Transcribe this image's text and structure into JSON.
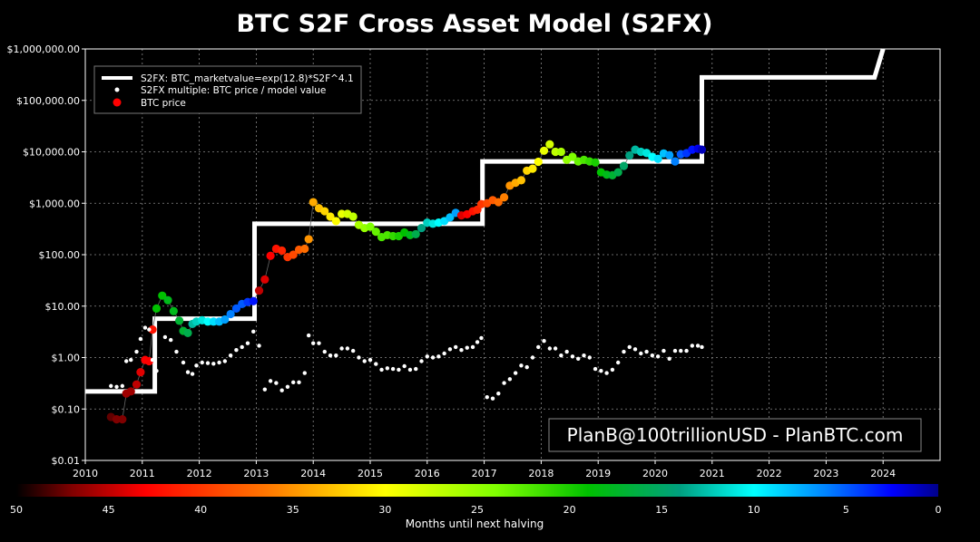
{
  "chart_data": {
    "type": "scatter",
    "title": "BTC S2F Cross Asset Model (S2FX)",
    "xlabel": "",
    "ylabel": "",
    "yscale": "log",
    "ylim": [
      0.01,
      1000000
    ],
    "xlim": [
      2010,
      2025
    ],
    "grid": true,
    "y_ticks": [
      {
        "value": 0.01,
        "label": "$0.01"
      },
      {
        "value": 0.1,
        "label": "$0.10"
      },
      {
        "value": 1,
        "label": "$1.00"
      },
      {
        "value": 10,
        "label": "$10.00"
      },
      {
        "value": 100,
        "label": "$100.00"
      },
      {
        "value": 1000,
        "label": "$1,000.00"
      },
      {
        "value": 10000,
        "label": "$10,000.00"
      },
      {
        "value": 100000,
        "label": "$100,000.00"
      },
      {
        "value": 1000000,
        "label": "$1,000,000.00"
      }
    ],
    "x_ticks": [
      {
        "value": 2010,
        "label": "2010"
      },
      {
        "value": 2011,
        "label": "2011"
      },
      {
        "value": 2012,
        "label": "2012"
      },
      {
        "value": 2013,
        "label": "2013"
      },
      {
        "value": 2014,
        "label": "2014"
      },
      {
        "value": 2015,
        "label": "2015"
      },
      {
        "value": 2016,
        "label": "2016"
      },
      {
        "value": 2017,
        "label": "2017"
      },
      {
        "value": 2018,
        "label": "2018"
      },
      {
        "value": 2019,
        "label": "2019"
      },
      {
        "value": 2020,
        "label": "2020"
      },
      {
        "value": 2021,
        "label": "2021"
      },
      {
        "value": 2022,
        "label": "2022"
      },
      {
        "value": 2023,
        "label": "2023"
      },
      {
        "value": 2024,
        "label": "2024"
      }
    ],
    "legend": {
      "placement": "top-left",
      "entries": [
        {
          "label": "S2FX: BTC_marketvalue=exp(12.8)*S2F^4.1",
          "marker": "line",
          "color": "#ffffff"
        },
        {
          "label": "S2FX multiple: BTC price / model value",
          "marker": "small-dot",
          "color": "#ffffff"
        },
        {
          "label": "BTC price",
          "marker": "dot",
          "color": "#ff0000"
        }
      ]
    },
    "watermark": "PlanB@100trillionUSD  -  PlanBTC.com",
    "colorbar": {
      "label": "Months until next halving",
      "min": 0,
      "max": 50,
      "ticks": [
        {
          "value": 50,
          "label": "50"
        },
        {
          "value": 45,
          "label": "45"
        },
        {
          "value": 40,
          "label": "40"
        },
        {
          "value": 35,
          "label": "35"
        },
        {
          "value": 30,
          "label": "30"
        },
        {
          "value": 25,
          "label": "25"
        },
        {
          "value": 20,
          "label": "20"
        },
        {
          "value": 15,
          "label": "15"
        },
        {
          "value": 10,
          "label": "10"
        },
        {
          "value": 5,
          "label": "5"
        },
        {
          "value": 0,
          "label": "0"
        }
      ]
    },
    "series": [
      {
        "name": "S2FX model (step)",
        "type": "step-line",
        "points": [
          [
            2010.0,
            0.22
          ],
          [
            2011.22,
            0.22
          ],
          [
            2011.22,
            5.7
          ],
          [
            2012.97,
            5.7
          ],
          [
            2012.97,
            400
          ],
          [
            2016.97,
            400
          ],
          [
            2016.97,
            6500
          ],
          [
            2020.82,
            6500
          ],
          [
            2020.82,
            280000
          ],
          [
            2023.85,
            280000
          ],
          [
            2024.0,
            1000000
          ]
        ]
      },
      {
        "name": "S2FX multiple",
        "type": "scatter-small",
        "points": [
          [
            2010.45,
            0.28
          ],
          [
            2010.55,
            0.27
          ],
          [
            2010.65,
            0.28
          ],
          [
            2010.72,
            0.85
          ],
          [
            2010.8,
            0.9
          ],
          [
            2010.9,
            1.3
          ],
          [
            2010.97,
            2.3
          ],
          [
            2011.05,
            3.8
          ],
          [
            2011.12,
            3.5
          ],
          [
            2011.18,
            0.9
          ],
          [
            2011.25,
            0.55
          ],
          [
            2011.4,
            2.5
          ],
          [
            2011.5,
            2.2
          ],
          [
            2011.6,
            1.3
          ],
          [
            2011.72,
            0.8
          ],
          [
            2011.8,
            0.52
          ],
          [
            2011.88,
            0.48
          ],
          [
            2011.95,
            0.7
          ],
          [
            2012.05,
            0.8
          ],
          [
            2012.15,
            0.78
          ],
          [
            2012.25,
            0.76
          ],
          [
            2012.35,
            0.8
          ],
          [
            2012.45,
            0.85
          ],
          [
            2012.55,
            1.1
          ],
          [
            2012.65,
            1.4
          ],
          [
            2012.75,
            1.6
          ],
          [
            2012.85,
            1.9
          ],
          [
            2012.95,
            3.2
          ],
          [
            2013.05,
            1.7
          ],
          [
            2013.15,
            0.24
          ],
          [
            2013.25,
            0.35
          ],
          [
            2013.35,
            0.32
          ],
          [
            2013.45,
            0.23
          ],
          [
            2013.55,
            0.27
          ],
          [
            2013.65,
            0.33
          ],
          [
            2013.75,
            0.33
          ],
          [
            2013.85,
            0.5
          ],
          [
            2013.92,
            2.7
          ],
          [
            2014.0,
            1.9
          ],
          [
            2014.1,
            1.9
          ],
          [
            2014.2,
            1.3
          ],
          [
            2014.3,
            1.1
          ],
          [
            2014.4,
            1.1
          ],
          [
            2014.5,
            1.5
          ],
          [
            2014.6,
            1.5
          ],
          [
            2014.7,
            1.35
          ],
          [
            2014.8,
            1.0
          ],
          [
            2014.9,
            0.85
          ],
          [
            2015.0,
            0.9
          ],
          [
            2015.1,
            0.75
          ],
          [
            2015.2,
            0.58
          ],
          [
            2015.3,
            0.62
          ],
          [
            2015.4,
            0.6
          ],
          [
            2015.5,
            0.58
          ],
          [
            2015.6,
            0.68
          ],
          [
            2015.7,
            0.58
          ],
          [
            2015.8,
            0.6
          ],
          [
            2015.9,
            0.85
          ],
          [
            2016.0,
            1.05
          ],
          [
            2016.1,
            1.0
          ],
          [
            2016.2,
            1.05
          ],
          [
            2016.3,
            1.2
          ],
          [
            2016.4,
            1.45
          ],
          [
            2016.5,
            1.6
          ],
          [
            2016.6,
            1.4
          ],
          [
            2016.7,
            1.55
          ],
          [
            2016.8,
            1.6
          ],
          [
            2016.88,
            2.0
          ],
          [
            2016.95,
            2.4
          ],
          [
            2017.05,
            0.17
          ],
          [
            2017.15,
            0.16
          ],
          [
            2017.25,
            0.2
          ],
          [
            2017.35,
            0.32
          ],
          [
            2017.45,
            0.38
          ],
          [
            2017.55,
            0.5
          ],
          [
            2017.65,
            0.7
          ],
          [
            2017.75,
            0.65
          ],
          [
            2017.85,
            1.0
          ],
          [
            2017.95,
            1.6
          ],
          [
            2018.05,
            2.1
          ],
          [
            2018.15,
            1.5
          ],
          [
            2018.25,
            1.5
          ],
          [
            2018.35,
            1.1
          ],
          [
            2018.45,
            1.3
          ],
          [
            2018.55,
            1.05
          ],
          [
            2018.65,
            0.95
          ],
          [
            2018.75,
            1.1
          ],
          [
            2018.85,
            1.0
          ],
          [
            2018.95,
            0.6
          ],
          [
            2019.05,
            0.55
          ],
          [
            2019.15,
            0.5
          ],
          [
            2019.25,
            0.58
          ],
          [
            2019.35,
            0.8
          ],
          [
            2019.45,
            1.3
          ],
          [
            2019.55,
            1.6
          ],
          [
            2019.65,
            1.45
          ],
          [
            2019.75,
            1.2
          ],
          [
            2019.85,
            1.3
          ],
          [
            2019.95,
            1.1
          ],
          [
            2020.05,
            1.05
          ],
          [
            2020.15,
            1.35
          ],
          [
            2020.25,
            0.95
          ],
          [
            2020.35,
            1.35
          ],
          [
            2020.45,
            1.35
          ],
          [
            2020.55,
            1.35
          ],
          [
            2020.65,
            1.7
          ],
          [
            2020.75,
            1.7
          ],
          [
            2020.82,
            1.6
          ]
        ]
      },
      {
        "name": "BTC price",
        "type": "scatter-colored",
        "points": [
          [
            2010.45,
            0.07,
            48
          ],
          [
            2010.55,
            0.063,
            47
          ],
          [
            2010.65,
            0.063,
            47
          ],
          [
            2010.72,
            0.2,
            46
          ],
          [
            2010.8,
            0.22,
            46
          ],
          [
            2010.9,
            0.3,
            45
          ],
          [
            2010.97,
            0.52,
            44
          ],
          [
            2011.05,
            0.9,
            43
          ],
          [
            2011.12,
            0.85,
            43
          ],
          [
            2011.18,
            3.5,
            42
          ],
          [
            2011.25,
            9,
            19
          ],
          [
            2011.35,
            16,
            19
          ],
          [
            2011.45,
            13,
            18
          ],
          [
            2011.55,
            8,
            18
          ],
          [
            2011.65,
            5.2,
            17
          ],
          [
            2011.72,
            3.3,
            17
          ],
          [
            2011.8,
            3,
            16
          ],
          [
            2011.88,
            4.5,
            13
          ],
          [
            2011.95,
            5,
            12
          ],
          [
            2012.05,
            5.3,
            11
          ],
          [
            2012.15,
            5,
            10
          ],
          [
            2012.25,
            5,
            9
          ],
          [
            2012.35,
            5,
            8
          ],
          [
            2012.45,
            5.5,
            7
          ],
          [
            2012.55,
            7,
            6
          ],
          [
            2012.65,
            9,
            5
          ],
          [
            2012.75,
            11,
            5
          ],
          [
            2012.85,
            12,
            4
          ],
          [
            2012.95,
            12.5,
            3
          ],
          [
            2013.05,
            20,
            45
          ],
          [
            2013.15,
            33,
            44
          ],
          [
            2013.25,
            95,
            43
          ],
          [
            2013.35,
            130,
            42
          ],
          [
            2013.45,
            120,
            41
          ],
          [
            2013.55,
            90,
            40
          ],
          [
            2013.65,
            100,
            39
          ],
          [
            2013.75,
            125,
            38
          ],
          [
            2013.85,
            130,
            37
          ],
          [
            2013.92,
            200,
            35
          ],
          [
            2014.0,
            1050,
            34
          ],
          [
            2014.1,
            800,
            33
          ],
          [
            2014.2,
            700,
            32
          ],
          [
            2014.3,
            550,
            31
          ],
          [
            2014.4,
            450,
            30
          ],
          [
            2014.5,
            620,
            29
          ],
          [
            2014.6,
            620,
            28
          ],
          [
            2014.7,
            550,
            27
          ],
          [
            2014.8,
            380,
            26
          ],
          [
            2014.9,
            330,
            25
          ],
          [
            2015.0,
            350,
            24
          ],
          [
            2015.1,
            280,
            23
          ],
          [
            2015.2,
            220,
            22
          ],
          [
            2015.3,
            240,
            22
          ],
          [
            2015.4,
            230,
            21
          ],
          [
            2015.5,
            230,
            20
          ],
          [
            2015.6,
            270,
            19
          ],
          [
            2015.7,
            240,
            18
          ],
          [
            2015.8,
            250,
            16
          ],
          [
            2015.9,
            330,
            14
          ],
          [
            2016.0,
            420,
            12
          ],
          [
            2016.1,
            400,
            11
          ],
          [
            2016.2,
            420,
            10
          ],
          [
            2016.3,
            450,
            9
          ],
          [
            2016.4,
            530,
            8
          ],
          [
            2016.5,
            650,
            7
          ],
          [
            2016.6,
            580,
            44
          ],
          [
            2016.7,
            610,
            43
          ],
          [
            2016.8,
            700,
            42
          ],
          [
            2016.88,
            750,
            41
          ],
          [
            2016.95,
            960,
            40
          ],
          [
            2017.05,
            1000,
            39
          ],
          [
            2017.15,
            1150,
            38
          ],
          [
            2017.25,
            1050,
            37
          ],
          [
            2017.35,
            1300,
            36
          ],
          [
            2017.45,
            2200,
            35
          ],
          [
            2017.55,
            2500,
            34
          ],
          [
            2017.65,
            2800,
            33
          ],
          [
            2017.75,
            4300,
            32
          ],
          [
            2017.85,
            4700,
            31
          ],
          [
            2017.95,
            6400,
            30
          ],
          [
            2018.05,
            10500,
            29
          ],
          [
            2018.15,
            14000,
            28
          ],
          [
            2018.25,
            10000,
            27
          ],
          [
            2018.35,
            10000,
            26
          ],
          [
            2018.45,
            7000,
            25
          ],
          [
            2018.55,
            8000,
            24
          ],
          [
            2018.65,
            6500,
            23
          ],
          [
            2018.75,
            7000,
            22
          ],
          [
            2018.85,
            6500,
            21
          ],
          [
            2018.95,
            6200,
            20
          ],
          [
            2019.05,
            4000,
            19
          ],
          [
            2019.15,
            3600,
            18
          ],
          [
            2019.25,
            3500,
            17
          ],
          [
            2019.35,
            4000,
            16
          ],
          [
            2019.45,
            5300,
            15
          ],
          [
            2019.55,
            8500,
            14
          ],
          [
            2019.65,
            11000,
            13
          ],
          [
            2019.75,
            10000,
            12
          ],
          [
            2019.85,
            9500,
            11
          ],
          [
            2019.95,
            8000,
            10
          ],
          [
            2020.05,
            7300,
            9
          ],
          [
            2020.15,
            9300,
            8
          ],
          [
            2020.25,
            8600,
            7
          ],
          [
            2020.35,
            6500,
            6
          ],
          [
            2020.45,
            9000,
            5
          ],
          [
            2020.55,
            9400,
            4
          ],
          [
            2020.65,
            11000,
            3
          ],
          [
            2020.75,
            11500,
            2
          ],
          [
            2020.82,
            11000,
            1
          ]
        ]
      }
    ]
  }
}
